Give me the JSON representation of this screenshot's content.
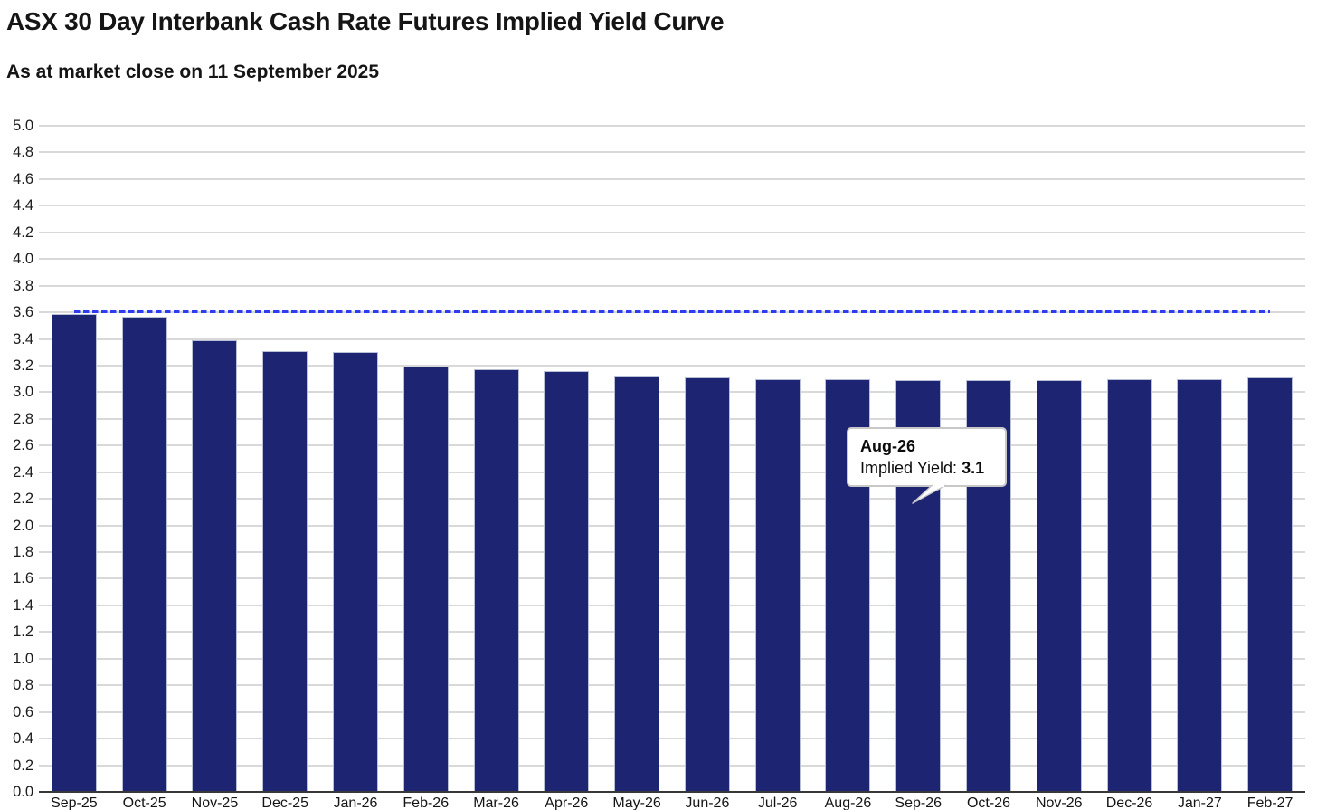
{
  "header": {
    "title": "ASX 30 Day Interbank Cash Rate Futures Implied Yield Curve",
    "subtitle": "As at market close on 11 September 2025"
  },
  "chart_data": {
    "type": "bar",
    "title": "ASX 30 Day Interbank Cash Rate Futures Implied Yield Curve",
    "subtitle": "As at market close on 11 September 2025",
    "categories": [
      "Sep-25",
      "Oct-25",
      "Nov-25",
      "Dec-25",
      "Jan-26",
      "Feb-26",
      "Mar-26",
      "Apr-26",
      "May-26",
      "Jun-26",
      "Jul-26",
      "Aug-26",
      "Sep-26",
      "Oct-26",
      "Nov-26",
      "Dec-26",
      "Jan-27",
      "Feb-27"
    ],
    "values": [
      3.59,
      3.57,
      3.39,
      3.31,
      3.3,
      3.19,
      3.17,
      3.16,
      3.12,
      3.11,
      3.1,
      3.1,
      3.09,
      3.09,
      3.09,
      3.1,
      3.1,
      3.11
    ],
    "xlabel": "",
    "ylabel": "",
    "ylim": [
      0.0,
      5.0
    ],
    "y_tick_step": 0.2,
    "y_ticks": [
      "0.0",
      "0.2",
      "0.4",
      "0.6",
      "0.8",
      "1.0",
      "1.2",
      "1.4",
      "1.6",
      "1.8",
      "2.0",
      "2.2",
      "2.4",
      "2.6",
      "2.8",
      "3.0",
      "3.2",
      "3.4",
      "3.6",
      "3.8",
      "4.0",
      "4.2",
      "4.4",
      "4.6",
      "4.8",
      "5.0"
    ],
    "grid": "horizontal",
    "legend": "none",
    "bar_color": "#1d2472",
    "bar_border_color": "#b9bfd4",
    "reference_line": {
      "value": 3.6,
      "style": "dashed",
      "color": "#2e3cf0"
    },
    "tooltip": {
      "category": "Aug-26",
      "field_label": "Implied Yield: ",
      "value": "3.1",
      "target_index": 11
    }
  }
}
